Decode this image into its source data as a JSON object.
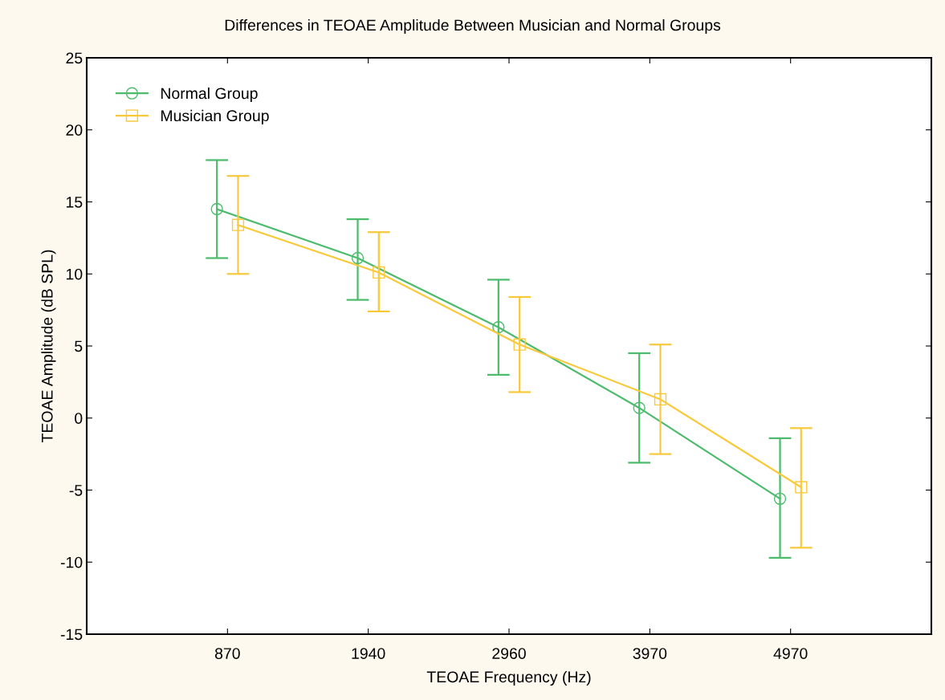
{
  "chart_data": {
    "type": "line",
    "title": "Differences in TEOAE Amplitude Between Musician and Normal Groups",
    "xlabel": "TEOAE Frequency (Hz)",
    "ylabel": "TEOAE Amplitude (dB SPL)",
    "categories": [
      "870",
      "1940",
      "2960",
      "3970",
      "4970"
    ],
    "series": [
      {
        "name": "Normal Group",
        "color": "#4cbb6c",
        "marker": "circle",
        "values": [
          14.5,
          11.1,
          6.3,
          0.7,
          -5.6
        ],
        "errors": [
          [
            11.1,
            17.9
          ],
          [
            8.2,
            13.8
          ],
          [
            3.0,
            9.6
          ],
          [
            -3.1,
            4.5
          ],
          [
            -9.7,
            -1.4
          ]
        ]
      },
      {
        "name": "Musician Group",
        "color": "#f9c93c",
        "marker": "square",
        "values": [
          13.4,
          10.1,
          5.1,
          1.3,
          -4.8
        ],
        "errors": [
          [
            10.0,
            16.8
          ],
          [
            7.4,
            12.9
          ],
          [
            1.8,
            8.4
          ],
          [
            -2.5,
            5.1
          ],
          [
            -9.0,
            -0.7
          ]
        ]
      }
    ],
    "ylim": [
      -15,
      25
    ],
    "yticks": [
      -15,
      -10,
      -5,
      0,
      5,
      10,
      15,
      20,
      25
    ],
    "grid": false,
    "legend": "top left",
    "line_style": "solid"
  }
}
